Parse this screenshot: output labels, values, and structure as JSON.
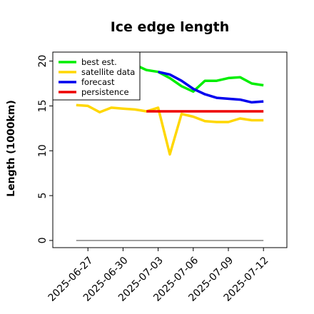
{
  "chart_data": {
    "type": "line",
    "title": "Ice edge length",
    "xlabel": "",
    "ylabel": "Length (1000km)",
    "ylim": [
      -0.8,
      21
    ],
    "xlim": [
      "2025-06-24",
      "2025-07-14"
    ],
    "yticks": [
      0,
      5,
      10,
      15,
      20
    ],
    "ytick_labels": [
      "0",
      "5",
      "10",
      "15",
      "20"
    ],
    "xticks": [
      "2025-06-27",
      "2025-06-30",
      "2025-07-03",
      "2025-07-06",
      "2025-07-09",
      "2025-07-12"
    ],
    "xtick_labels": [
      "2025-06-27",
      "2025-06-30",
      "2025-07-03",
      "2025-07-06",
      "2025-07-09",
      "2025-07-12"
    ],
    "highlight_tick": "2025-07-03",
    "highlight_color": "#228b22",
    "grid": false,
    "legend_placement": "upper-left",
    "baseline": {
      "value": 0,
      "x": [
        "2025-06-26",
        "2025-07-12"
      ],
      "color": "#808080"
    },
    "series": [
      {
        "name": "best est.",
        "color": "#00ee00",
        "x": [
          "2025-07-01",
          "2025-07-02",
          "2025-07-03",
          "2025-07-04",
          "2025-07-05",
          "2025-07-06",
          "2025-07-07",
          "2025-07-08",
          "2025-07-09",
          "2025-07-10",
          "2025-07-11",
          "2025-07-12"
        ],
        "values": [
          19.6,
          19.0,
          18.8,
          18.1,
          17.2,
          16.6,
          17.8,
          17.8,
          18.1,
          18.2,
          17.5,
          17.3
        ]
      },
      {
        "name": "satellite data",
        "color": "#ffd700",
        "x": [
          "2025-06-26",
          "2025-06-27",
          "2025-06-28",
          "2025-06-29",
          "2025-06-30",
          "2025-07-01",
          "2025-07-02",
          "2025-07-03",
          "2025-07-04",
          "2025-07-05",
          "2025-07-06",
          "2025-07-07",
          "2025-07-08",
          "2025-07-09",
          "2025-07-10",
          "2025-07-11",
          "2025-07-12"
        ],
        "values": [
          15.1,
          15.0,
          14.3,
          14.8,
          14.7,
          14.6,
          14.4,
          14.8,
          9.6,
          14.1,
          13.8,
          13.3,
          13.2,
          13.2,
          13.6,
          13.4,
          13.4
        ]
      },
      {
        "name": "forecast",
        "color": "#0000ee",
        "x": [
          "2025-07-03",
          "2025-07-04",
          "2025-07-05",
          "2025-07-06",
          "2025-07-07",
          "2025-07-08",
          "2025-07-09",
          "2025-07-10",
          "2025-07-11",
          "2025-07-12"
        ],
        "values": [
          18.8,
          18.5,
          17.8,
          16.9,
          16.3,
          15.9,
          15.8,
          15.7,
          15.4,
          15.5
        ]
      },
      {
        "name": "persistence",
        "color": "#ee0000",
        "x": [
          "2025-07-02",
          "2025-07-12"
        ],
        "values": [
          14.4,
          14.4
        ]
      }
    ]
  }
}
